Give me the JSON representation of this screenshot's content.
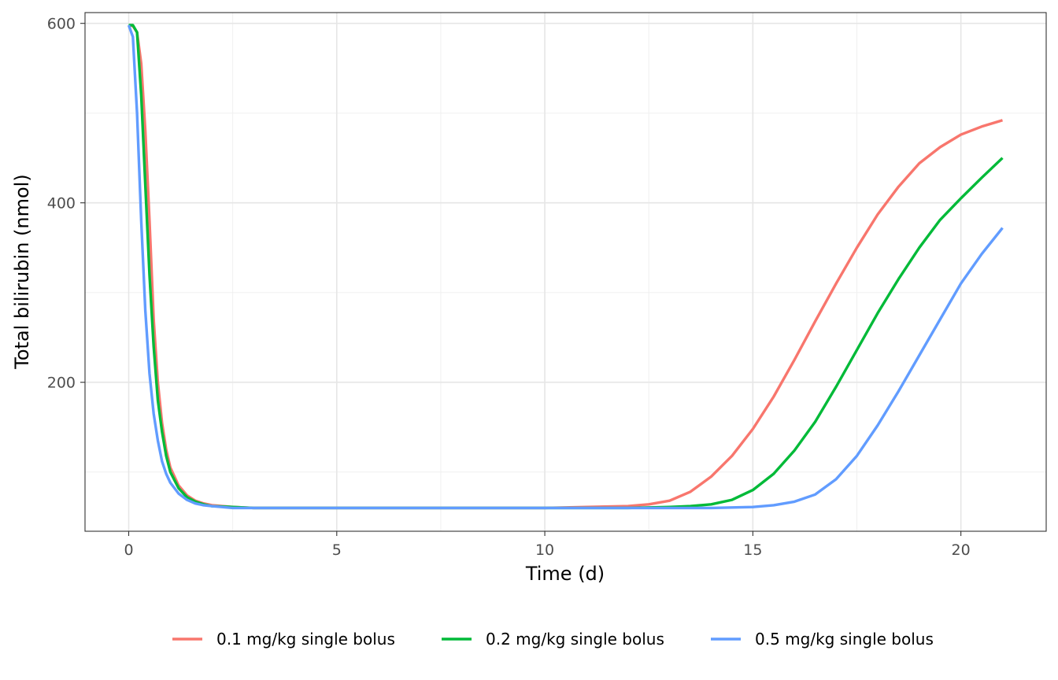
{
  "chart_data": {
    "type": "line",
    "xlabel": "Time (d)",
    "ylabel": "Total bilirubin (nmol)",
    "xlim": [
      -1.05,
      22.05
    ],
    "ylim": [
      34,
      612
    ],
    "x_ticks": [
      0,
      5,
      10,
      15,
      20
    ],
    "x_tick_labels": [
      "0",
      "5",
      "10",
      "15",
      "20"
    ],
    "x_minor_ticks": [
      2.5,
      7.5,
      12.5,
      17.5
    ],
    "y_ticks": [
      200,
      400,
      600
    ],
    "y_tick_labels": [
      "200",
      "400",
      "600"
    ],
    "y_minor_ticks": [
      100,
      300,
      500
    ],
    "grid": true,
    "legend_position": "bottom",
    "series": [
      {
        "name": "0.1 mg/kg single bolus",
        "color": "#F8766D",
        "x": [
          0,
          0.1,
          0.2,
          0.3,
          0.4,
          0.5,
          0.6,
          0.7,
          0.8,
          0.9,
          1.0,
          1.2,
          1.4,
          1.6,
          1.8,
          2.0,
          2.5,
          3,
          4,
          6,
          8,
          10,
          11,
          12,
          12.5,
          13,
          13.5,
          14,
          14.5,
          15,
          15.5,
          16,
          16.5,
          17,
          17.5,
          18,
          18.5,
          19,
          19.5,
          20,
          20.5,
          21
        ],
        "y": [
          598,
          597,
          590,
          555,
          480,
          380,
          270,
          200,
          155,
          125,
          105,
          85,
          74,
          68,
          65,
          63,
          61,
          60,
          60,
          60,
          60,
          60,
          61,
          62,
          64,
          68,
          78,
          95,
          118,
          148,
          184,
          225,
          268,
          310,
          350,
          387,
          418,
          444,
          462,
          476,
          485,
          492
        ]
      },
      {
        "name": "0.2 mg/kg single bolus",
        "color": "#00BA38",
        "x": [
          0,
          0.1,
          0.2,
          0.3,
          0.4,
          0.5,
          0.6,
          0.7,
          0.8,
          0.9,
          1.0,
          1.2,
          1.4,
          1.6,
          1.8,
          2.0,
          2.5,
          3,
          4,
          6,
          8,
          10,
          11,
          12,
          13,
          13.5,
          14,
          14.5,
          15,
          15.5,
          16,
          16.5,
          17,
          17.5,
          18,
          18.5,
          19,
          19.5,
          20,
          20.5,
          21
        ],
        "y": [
          598,
          598,
          590,
          520,
          420,
          320,
          240,
          180,
          145,
          118,
          100,
          82,
          72,
          67,
          64,
          62,
          61,
          60,
          60,
          60,
          60,
          60,
          60,
          60,
          61,
          62,
          64,
          69,
          80,
          98,
          124,
          156,
          195,
          236,
          277,
          315,
          350,
          381,
          405,
          428,
          450
        ]
      },
      {
        "name": "0.5 mg/kg single bolus",
        "color": "#619CFF",
        "x": [
          0,
          0.1,
          0.2,
          0.3,
          0.4,
          0.5,
          0.6,
          0.7,
          0.8,
          0.9,
          1.0,
          1.2,
          1.4,
          1.6,
          1.8,
          2.0,
          2.5,
          3,
          4,
          6,
          8,
          10,
          12,
          13,
          14,
          15,
          15.5,
          16,
          16.5,
          17,
          17.5,
          18,
          18.5,
          19,
          19.5,
          20,
          20.5,
          21
        ],
        "y": [
          598,
          585,
          500,
          380,
          280,
          210,
          165,
          135,
          112,
          98,
          88,
          76,
          69,
          65,
          63,
          62,
          60,
          60,
          60,
          60,
          60,
          60,
          60,
          60,
          60,
          61,
          63,
          67,
          75,
          92,
          118,
          152,
          190,
          230,
          270,
          310,
          343,
          372
        ]
      }
    ]
  }
}
